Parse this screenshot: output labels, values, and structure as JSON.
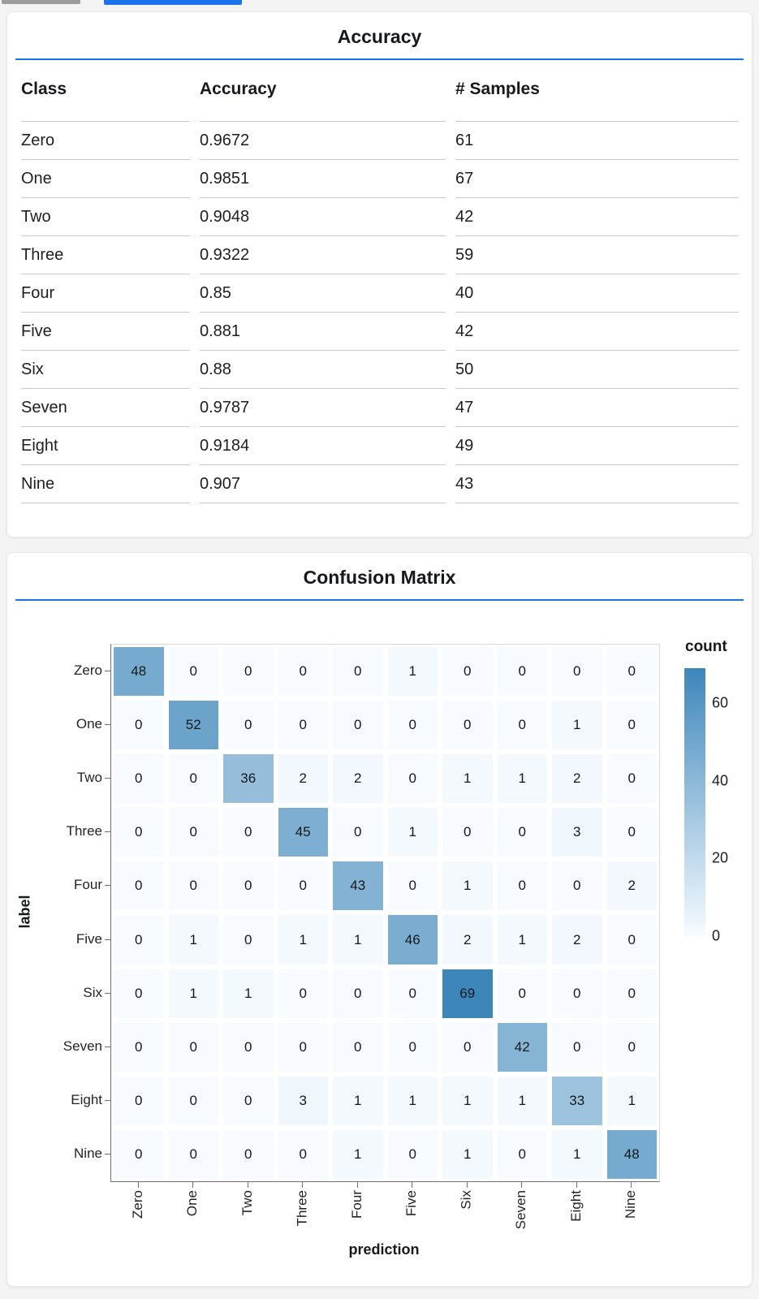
{
  "theme": {
    "accent_blue": "#1a73e8",
    "inactive_tab_gray": "#9c9c9c",
    "heat_low": "#f7fbff",
    "heat_high": "#3d86ba"
  },
  "chart_data": [
    {
      "type": "table",
      "title": "Accuracy",
      "columns": [
        "Class",
        "Accuracy",
        "# Samples"
      ],
      "rows": [
        [
          "Zero",
          "0.9672",
          "61"
        ],
        [
          "One",
          "0.9851",
          "67"
        ],
        [
          "Two",
          "0.9048",
          "42"
        ],
        [
          "Three",
          "0.9322",
          "59"
        ],
        [
          "Four",
          "0.85",
          "40"
        ],
        [
          "Five",
          "0.881",
          "42"
        ],
        [
          "Six",
          "0.88",
          "50"
        ],
        [
          "Seven",
          "0.9787",
          "47"
        ],
        [
          "Eight",
          "0.9184",
          "49"
        ],
        [
          "Nine",
          "0.907",
          "43"
        ]
      ]
    },
    {
      "type": "heatmap",
      "title": "Confusion Matrix",
      "xlabel": "prediction",
      "ylabel": "label",
      "legend_title": "count",
      "legend_position": "right",
      "x_categories": [
        "Zero",
        "One",
        "Two",
        "Three",
        "Four",
        "Five",
        "Six",
        "Seven",
        "Eight",
        "Nine"
      ],
      "y_categories": [
        "Zero",
        "One",
        "Two",
        "Three",
        "Four",
        "Five",
        "Six",
        "Seven",
        "Eight",
        "Nine"
      ],
      "values": [
        [
          48,
          0,
          0,
          0,
          0,
          1,
          0,
          0,
          0,
          0
        ],
        [
          0,
          52,
          0,
          0,
          0,
          0,
          0,
          0,
          1,
          0
        ],
        [
          0,
          0,
          36,
          2,
          2,
          0,
          1,
          1,
          2,
          0
        ],
        [
          0,
          0,
          0,
          45,
          0,
          1,
          0,
          0,
          3,
          0
        ],
        [
          0,
          0,
          0,
          0,
          43,
          0,
          1,
          0,
          0,
          2
        ],
        [
          0,
          1,
          0,
          1,
          1,
          46,
          2,
          1,
          2,
          0
        ],
        [
          0,
          1,
          1,
          0,
          0,
          0,
          69,
          0,
          0,
          0
        ],
        [
          0,
          0,
          0,
          0,
          0,
          0,
          0,
          42,
          0,
          0
        ],
        [
          0,
          0,
          0,
          3,
          1,
          1,
          1,
          1,
          33,
          1
        ],
        [
          0,
          0,
          0,
          0,
          1,
          0,
          1,
          0,
          1,
          48
        ]
      ],
      "color_domain": [
        0,
        69
      ],
      "legend_ticks": [
        60,
        40,
        20,
        0
      ]
    }
  ]
}
